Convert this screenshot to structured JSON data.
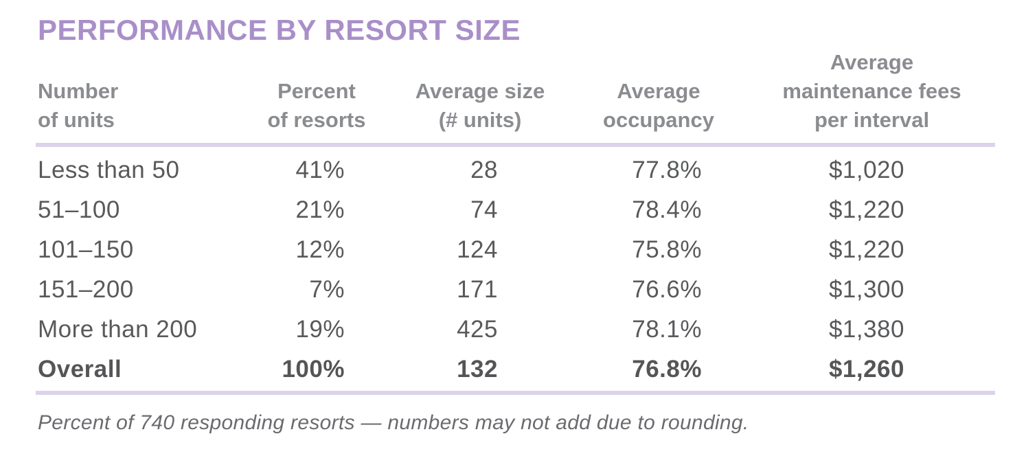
{
  "title": "PERFORMANCE BY RESORT SIZE",
  "colors": {
    "title_purple": "#a98fc9",
    "rule_lavender": "#dcd3ea",
    "header_gray": "#8a8c8f",
    "body_gray": "#58595b",
    "footnote_gray": "#6a6b6e"
  },
  "table": {
    "columns": [
      {
        "id": "units",
        "label_lines": [
          "Number",
          "of units"
        ]
      },
      {
        "id": "percent",
        "label_lines": [
          "Percent",
          "of resorts"
        ]
      },
      {
        "id": "avg_size",
        "label_lines": [
          "Average size",
          "(# units)"
        ]
      },
      {
        "id": "occupancy",
        "label_lines": [
          "Average",
          "occupancy"
        ]
      },
      {
        "id": "fees",
        "label_lines": [
          "Average",
          "maintenance fees",
          "per interval"
        ]
      }
    ],
    "rows": [
      [
        "Less than 50",
        "41%",
        "28",
        "77.8%",
        "$1,020"
      ],
      [
        "51–100",
        "21%",
        "74",
        "78.4%",
        "$1,220"
      ],
      [
        "101–150",
        "12%",
        "124",
        "75.8%",
        "$1,220"
      ],
      [
        "151–200",
        "7%",
        "171",
        "76.6%",
        "$1,300"
      ],
      [
        "More than 200",
        "19%",
        "425",
        "78.1%",
        "$1,380"
      ]
    ],
    "overall_row": [
      "Overall",
      "100%",
      "132",
      "76.8%",
      "$1,260"
    ]
  },
  "footnote": "Percent of 740 responding resorts — numbers may not add due to rounding.",
  "chart_data": {
    "type": "table",
    "title": "PERFORMANCE BY RESORT SIZE",
    "columns": [
      "Number of units",
      "Percent of resorts",
      "Average size (# units)",
      "Average occupancy",
      "Average maintenance fees per interval"
    ],
    "rows": [
      [
        "Less than 50",
        "41%",
        28,
        "77.8%",
        "$1,020"
      ],
      [
        "51–100",
        "21%",
        74,
        "78.4%",
        "$1,220"
      ],
      [
        "101–150",
        "12%",
        124,
        "75.8%",
        "$1,220"
      ],
      [
        "151–200",
        "7%",
        171,
        "76.6%",
        "$1,300"
      ],
      [
        "More than 200",
        "19%",
        425,
        "78.1%",
        "$1,380"
      ],
      [
        "Overall",
        "100%",
        132,
        "76.8%",
        "$1,260"
      ]
    ],
    "footnote": "Percent of 740 responding resorts — numbers may not add due to rounding."
  }
}
